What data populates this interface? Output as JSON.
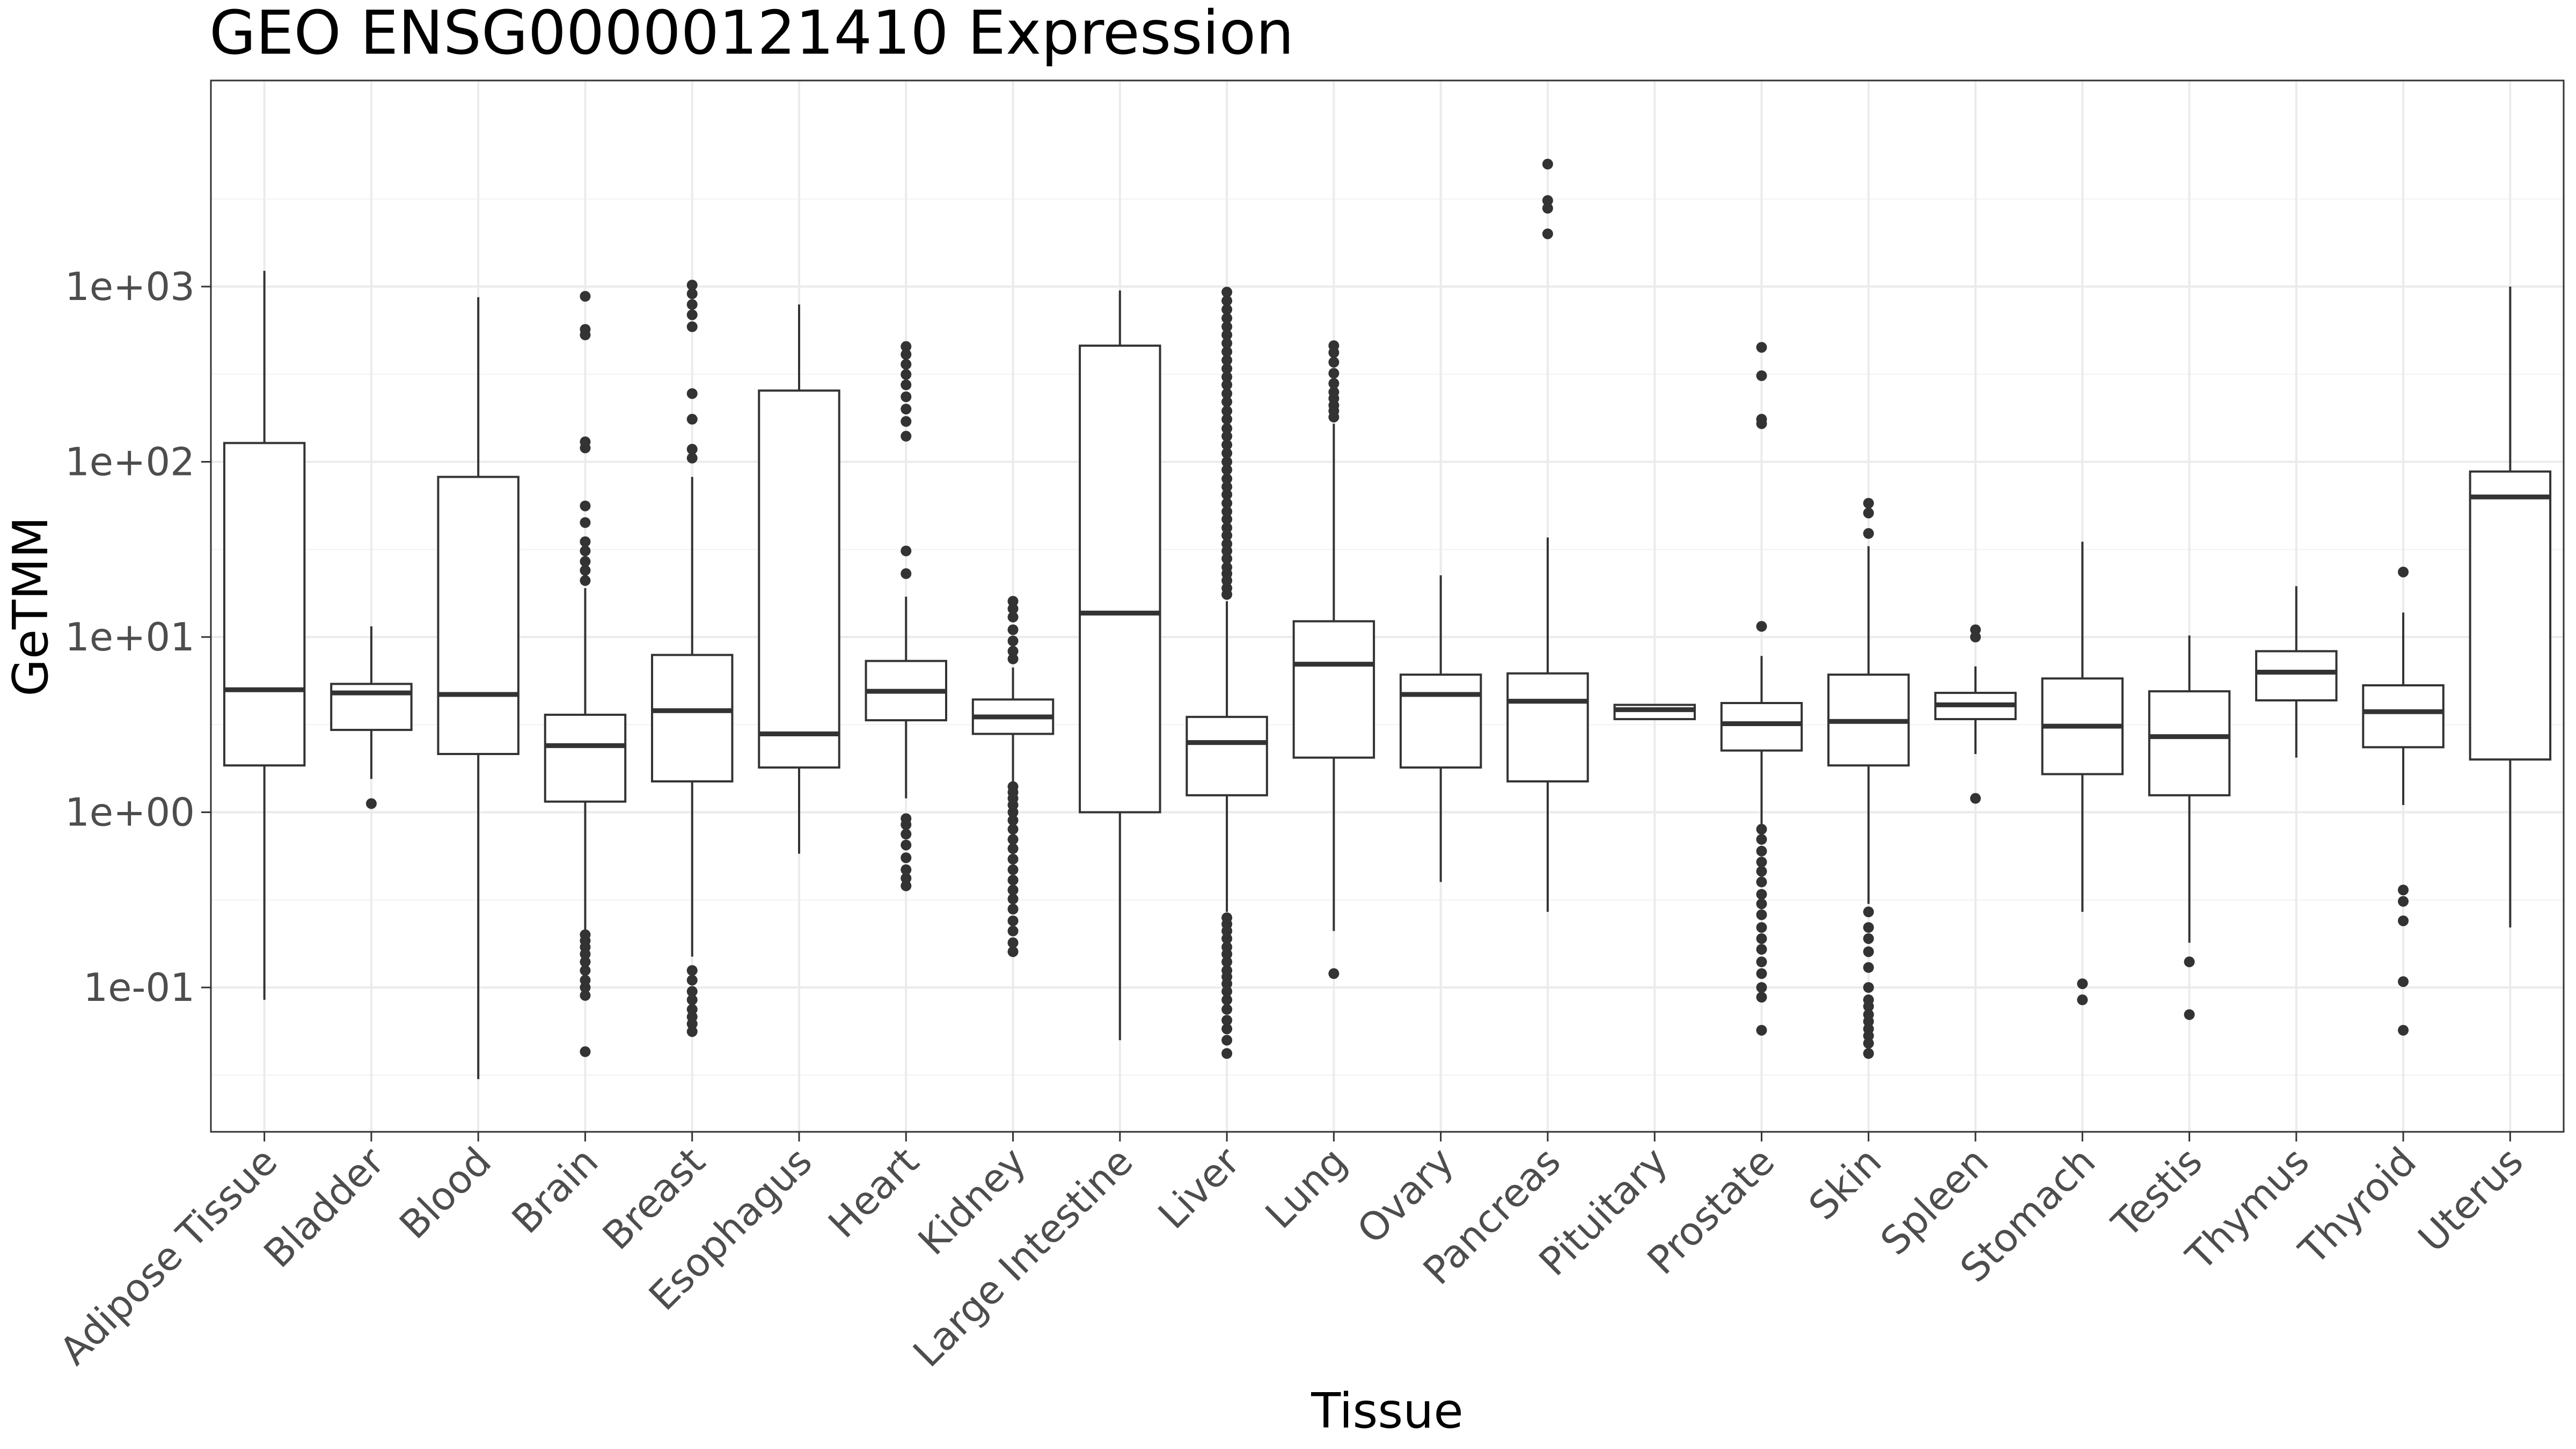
{
  "chart_data": {
    "type": "boxplot",
    "title": "GEO ENSG00000121410 Expression",
    "xlabel": "Tissue",
    "ylabel": "GeTMM",
    "y_scale": "log10",
    "ylim": [
      0.015,
      15000
    ],
    "y_ticks": [
      {
        "value": 0.1,
        "label": "1e-01"
      },
      {
        "value": 1,
        "label": "1e+00"
      },
      {
        "value": 10,
        "label": "1e+01"
      },
      {
        "value": 100,
        "label": "1e+02"
      },
      {
        "value": 1000,
        "label": "1e+03"
      }
    ],
    "grid": true,
    "categories": [
      "Adipose Tissue",
      "Bladder",
      "Blood",
      "Brain",
      "Breast",
      "Esophagus",
      "Heart",
      "Kidney",
      "Large Intestine",
      "Liver",
      "Lung",
      "Ovary",
      "Pancreas",
      "Pituitary",
      "Prostate",
      "Skin",
      "Spleen",
      "Stomach",
      "Testis",
      "Thymus",
      "Thyroid",
      "Uterus"
    ],
    "boxes": [
      {
        "q1": 1.85,
        "median": 5.0,
        "q3": 128,
        "whisker_low": 0.085,
        "whisker_high": 1230,
        "outliers": []
      },
      {
        "q1": 2.95,
        "median": 4.8,
        "q3": 5.4,
        "whisker_low": 1.55,
        "whisker_high": 11.5,
        "outliers": [
          1.12
        ]
      },
      {
        "q1": 2.15,
        "median": 4.7,
        "q3": 82,
        "whisker_low": 0.03,
        "whisker_high": 870,
        "outliers": []
      },
      {
        "q1": 1.15,
        "median": 2.4,
        "q3": 3.6,
        "whisker_low": 0.2,
        "whisker_high": 19,
        "outliers": [
          0.043,
          0.09,
          0.1,
          0.11,
          0.125,
          0.14,
          0.155,
          0.17,
          0.185,
          0.2,
          21,
          24,
          27,
          31,
          35,
          45,
          56,
          120,
          130,
          530,
          570,
          880
        ]
      },
      {
        "q1": 1.5,
        "median": 3.8,
        "q3": 7.9,
        "whisker_low": 0.15,
        "whisker_high": 82,
        "outliers": [
          0.056,
          0.062,
          0.068,
          0.075,
          0.085,
          0.095,
          0.11,
          0.125,
          105,
          118,
          175,
          245,
          590,
          690,
          790,
          910,
          1020
        ]
      },
      {
        "q1": 1.8,
        "median": 2.8,
        "q3": 255,
        "whisker_low": 0.58,
        "whisker_high": 790,
        "outliers": []
      },
      {
        "q1": 3.35,
        "median": 4.9,
        "q3": 7.3,
        "whisker_low": 1.2,
        "whisker_high": 17,
        "outliers": [
          0.38,
          0.42,
          0.47,
          0.55,
          0.65,
          0.75,
          0.85,
          0.92,
          23,
          31,
          140,
          170,
          200,
          235,
          275,
          315,
          360,
          410,
          455
        ]
      },
      {
        "q1": 2.8,
        "median": 3.5,
        "q3": 4.4,
        "whisker_low": 1.5,
        "whisker_high": 6.7,
        "outliers": [
          0.16,
          0.18,
          0.21,
          0.24,
          0.28,
          0.32,
          0.36,
          0.41,
          0.47,
          0.54,
          0.62,
          0.7,
          0.8,
          0.9,
          1.0,
          1.1,
          1.2,
          1.3,
          1.4,
          7.5,
          8.3,
          9.5,
          11,
          13,
          14.5,
          16
        ]
      },
      {
        "q1": 1.0,
        "median": 13.7,
        "q3": 460,
        "whisker_low": 0.05,
        "whisker_high": 950,
        "outliers": []
      },
      {
        "q1": 1.25,
        "median": 2.5,
        "q3": 3.5,
        "whisker_low": 0.27,
        "whisker_high": 16,
        "outliers": [
          0.042,
          0.05,
          0.058,
          0.065,
          0.075,
          0.085,
          0.095,
          0.105,
          0.115,
          0.125,
          0.14,
          0.155,
          0.17,
          0.19,
          0.21,
          0.23,
          0.25,
          17.5,
          19,
          21,
          23,
          25,
          28,
          31,
          34,
          38,
          42,
          47,
          52,
          58,
          65,
          72,
          80,
          90,
          100,
          112,
          125,
          140,
          155,
          175,
          195,
          220,
          245,
          275,
          305,
          340,
          380,
          425,
          475,
          530,
          590,
          660,
          740,
          830,
          930
        ]
      },
      {
        "q1": 2.05,
        "median": 7.0,
        "q3": 12.3,
        "whisker_low": 0.21,
        "whisker_high": 165,
        "outliers": [
          0.12,
          180,
          195,
          210,
          230,
          250,
          280,
          320,
          370,
          420,
          460
        ]
      },
      {
        "q1": 1.8,
        "median": 4.7,
        "q3": 6.1,
        "whisker_low": 0.4,
        "whisker_high": 22.5,
        "outliers": []
      },
      {
        "q1": 1.5,
        "median": 4.3,
        "q3": 6.2,
        "whisker_low": 0.27,
        "whisker_high": 37,
        "outliers": [
          2000,
          2800,
          3100,
          5000
        ]
      },
      {
        "q1": 3.4,
        "median": 3.85,
        "q3": 4.1,
        "whisker_low": 3.4,
        "whisker_high": 4.15,
        "outliers": []
      },
      {
        "q1": 2.25,
        "median": 3.2,
        "q3": 4.2,
        "whisker_low": 0.85,
        "whisker_high": 7.8,
        "outliers": [
          0.057,
          0.088,
          0.1,
          0.12,
          0.14,
          0.165,
          0.19,
          0.22,
          0.26,
          0.3,
          0.34,
          0.4,
          0.46,
          0.52,
          0.6,
          0.7,
          0.8,
          11.5,
          165,
          175,
          310,
          450
        ]
      },
      {
        "q1": 1.85,
        "median": 3.3,
        "q3": 6.1,
        "whisker_low": 0.3,
        "whisker_high": 33,
        "outliers": [
          0.042,
          0.048,
          0.053,
          0.058,
          0.064,
          0.07,
          0.078,
          0.085,
          0.1,
          0.13,
          0.16,
          0.19,
          0.22,
          0.27,
          39,
          51,
          58
        ]
      },
      {
        "q1": 3.4,
        "median": 4.1,
        "q3": 4.8,
        "whisker_low": 2.15,
        "whisker_high": 6.8,
        "outliers": [
          1.2,
          10,
          11
        ]
      },
      {
        "q1": 1.65,
        "median": 3.1,
        "q3": 5.8,
        "whisker_low": 0.27,
        "whisker_high": 35,
        "outliers": [
          0.085,
          0.105
        ]
      },
      {
        "q1": 1.25,
        "median": 2.7,
        "q3": 4.9,
        "whisker_low": 0.18,
        "whisker_high": 10.2,
        "outliers": [
          0.07,
          0.14
        ]
      },
      {
        "q1": 4.35,
        "median": 6.3,
        "q3": 8.3,
        "whisker_low": 2.05,
        "whisker_high": 19.5,
        "outliers": []
      },
      {
        "q1": 2.35,
        "median": 3.75,
        "q3": 5.3,
        "whisker_low": 1.1,
        "whisker_high": 13.8,
        "outliers": [
          0.057,
          0.108,
          0.24,
          0.31,
          0.36,
          23.5
        ]
      },
      {
        "q1": 2.0,
        "median": 63,
        "q3": 88,
        "whisker_low": 0.22,
        "whisker_high": 1000,
        "outliers": []
      }
    ]
  }
}
